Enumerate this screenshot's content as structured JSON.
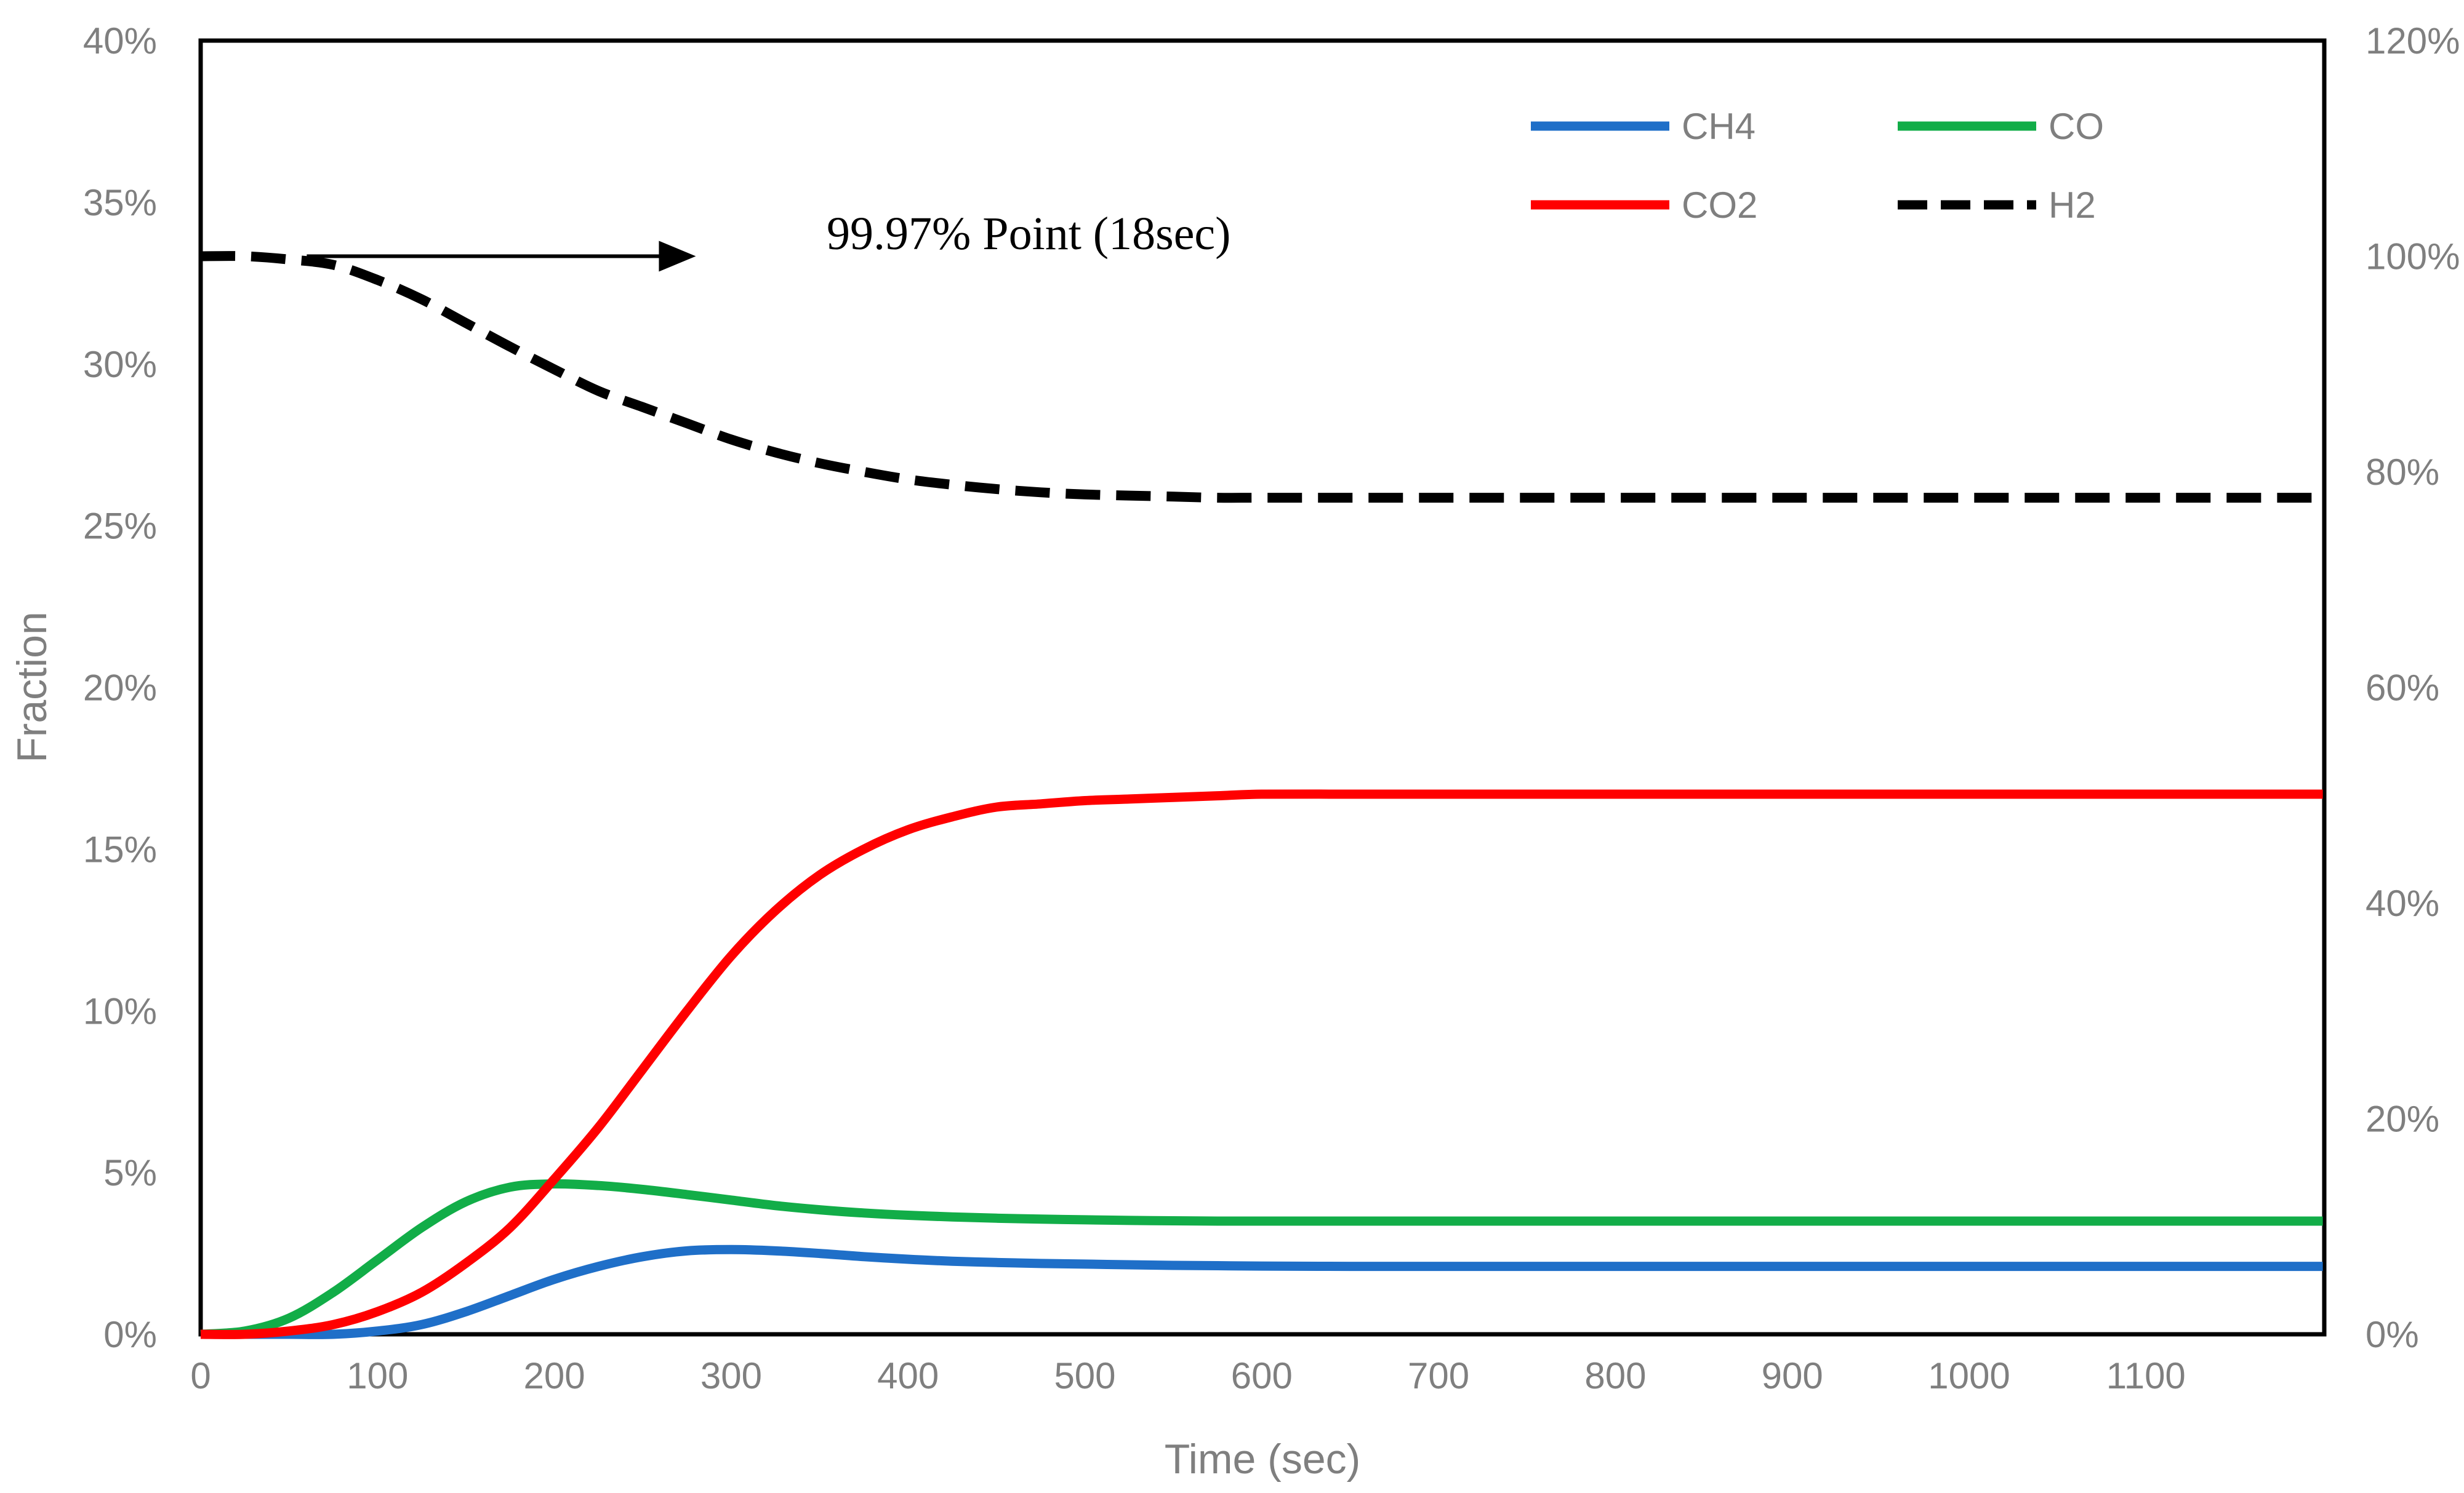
{
  "chart_data": {
    "type": "line",
    "title": "",
    "xlabel": "Time (sec)",
    "ylabel": "Fraction",
    "xlim": [
      0,
      1200
    ],
    "ylim": [
      0,
      0.4
    ],
    "y2lim": [
      0,
      1.2
    ],
    "x_ticks": [
      "0",
      "100",
      "200",
      "300",
      "400",
      "500",
      "600",
      "700",
      "800",
      "900",
      "1000",
      "1100"
    ],
    "y_ticks": [
      "0%",
      "5%",
      "10%",
      "15%",
      "20%",
      "25%",
      "30%",
      "35%",
      "40%"
    ],
    "y2_ticks": [
      "0%",
      "20%",
      "40%",
      "60%",
      "80%",
      "100%",
      "120%"
    ],
    "grid": false,
    "legend_position": "top-right",
    "x": [
      0,
      25,
      50,
      75,
      100,
      125,
      150,
      175,
      200,
      225,
      250,
      275,
      300,
      325,
      350,
      375,
      400,
      425,
      450,
      475,
      500,
      525,
      550,
      575,
      600,
      650,
      700,
      750,
      800,
      900,
      1000,
      1100,
      1200
    ],
    "series": [
      {
        "name": "CH4",
        "color": "#1f6fc8",
        "style": "solid",
        "axis": "left",
        "values": [
          0,
          0,
          0,
          0,
          0.001,
          0.003,
          0.007,
          0.012,
          0.017,
          0.021,
          0.024,
          0.0258,
          0.0262,
          0.0258,
          0.025,
          0.024,
          0.0232,
          0.0226,
          0.0222,
          0.0219,
          0.0217,
          0.0215,
          0.0213,
          0.0212,
          0.0211,
          0.021,
          0.021,
          0.021,
          0.021,
          0.021,
          0.021,
          0.021,
          0.021
        ]
      },
      {
        "name": "CO",
        "color": "#12ad48",
        "style": "solid",
        "axis": "left",
        "values": [
          0,
          0.001,
          0.005,
          0.013,
          0.023,
          0.033,
          0.041,
          0.0455,
          0.0465,
          0.046,
          0.0448,
          0.0432,
          0.0415,
          0.0398,
          0.0385,
          0.0375,
          0.0368,
          0.0363,
          0.0359,
          0.0356,
          0.0354,
          0.0352,
          0.0351,
          0.035,
          0.035,
          0.035,
          0.035,
          0.035,
          0.035,
          0.035,
          0.035,
          0.035,
          0.035
        ]
      },
      {
        "name": "CO2",
        "color": "#ff0000",
        "style": "solid",
        "axis": "left",
        "values": [
          0,
          0,
          0.001,
          0.003,
          0.007,
          0.013,
          0.022,
          0.033,
          0.048,
          0.064,
          0.082,
          0.1,
          0.117,
          0.131,
          0.142,
          0.15,
          0.156,
          0.16,
          0.163,
          0.164,
          0.165,
          0.1655,
          0.166,
          0.1665,
          0.167,
          0.167,
          0.167,
          0.167,
          0.167,
          0.167,
          0.167,
          0.167,
          0.167
        ]
      },
      {
        "name": "H2",
        "color": "#000000",
        "style": "dashed",
        "axis": "right",
        "values": [
          1.0,
          1.0,
          0.997,
          0.992,
          0.978,
          0.96,
          0.938,
          0.916,
          0.895,
          0.875,
          0.86,
          0.845,
          0.83,
          0.818,
          0.808,
          0.8,
          0.793,
          0.788,
          0.784,
          0.781,
          0.779,
          0.778,
          0.777,
          0.776,
          0.776,
          0.776,
          0.776,
          0.776,
          0.776,
          0.776,
          0.776,
          0.776,
          0.776
        ]
      }
    ],
    "annotation": {
      "text": "99.97% Point (18sec)",
      "arrow_from": [
        60,
        1.0
      ],
      "arrow_to": [
        280,
        1.0
      ]
    }
  }
}
